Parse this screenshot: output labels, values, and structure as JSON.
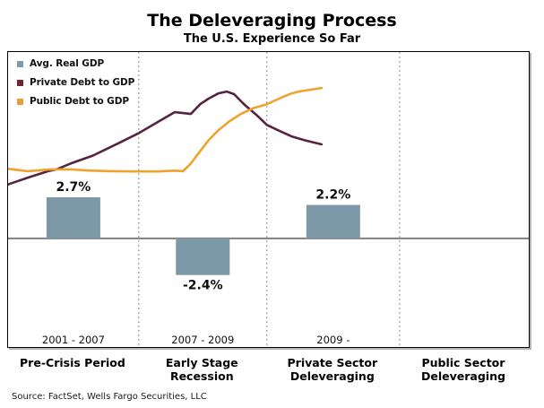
{
  "title": "The Deleveraging Process",
  "subtitle": "The U.S. Experience So Far",
  "source_note": "Source: FactSet, Wells Fargo Securities, LLC",
  "colors": {
    "bar_fill": "#7D98A6",
    "private_debt_line": "#572340",
    "public_debt_line": "#EFA32F",
    "section_divider": "#8a8a8a",
    "zero_axis": "#808080",
    "plot_border": "#000000"
  },
  "legend": {
    "position": "top-left-inside-plot",
    "items": [
      {
        "label": "Avg. Real GDP",
        "swatch_color": "#7D9BAA"
      },
      {
        "label": "Private Debt to GDP",
        "swatch_color": "#722730"
      },
      {
        "label": "Public Debt to GDP",
        "swatch_color": "#ED9C3C"
      }
    ]
  },
  "sections": [
    {
      "period": "2001 - 2007",
      "phase": "Pre-Crisis Period"
    },
    {
      "period": "2007 - 2009",
      "phase": "Early Stage\nRecession"
    },
    {
      "period": "2009 -",
      "phase": "Private Sector\nDeleveraging"
    },
    {
      "period": "",
      "phase": "Public Sector\nDeleveraging"
    }
  ],
  "chart_data": [
    {
      "type": "bar",
      "name": "Avg. Real GDP",
      "unit": "percent",
      "categories": [
        "2001 - 2007",
        "2007 - 2009",
        "2009 -",
        ""
      ],
      "phase_labels": [
        "Pre-Crisis Period",
        "Early Stage Recession",
        "Private Sector Deleveraging",
        "Public Sector Deleveraging"
      ],
      "values": [
        2.7,
        -2.4,
        2.2,
        null
      ],
      "value_labels": [
        "2.7%",
        "-2.4%",
        "2.2%",
        ""
      ],
      "section_boundaries_frac": [
        0,
        0.251,
        0.497,
        0.752,
        1
      ],
      "zero_line_frac_from_top": 0.632,
      "grid": "off",
      "note": "No numeric y-axis shown; bar heights labeled directly"
    },
    {
      "type": "line",
      "note": "No numeric axis shown; points are normalized plot coordinates [x-frac, y-frac from top]. Lines end about 60% across the plot (within the 2009- section).",
      "series": [
        {
          "name": "Private Debt to GDP",
          "color": "#572340",
          "points": [
            [
              0.0,
              0.449
            ],
            [
              0.036,
              0.427
            ],
            [
              0.077,
              0.404
            ],
            [
              0.093,
              0.398
            ],
            [
              0.12,
              0.378
            ],
            [
              0.163,
              0.351
            ],
            [
              0.21,
              0.311
            ],
            [
              0.249,
              0.277
            ],
            [
              0.287,
              0.238
            ],
            [
              0.32,
              0.204
            ],
            [
              0.336,
              0.207
            ],
            [
              0.351,
              0.21
            ],
            [
              0.369,
              0.177
            ],
            [
              0.385,
              0.158
            ],
            [
              0.404,
              0.14
            ],
            [
              0.42,
              0.134
            ],
            [
              0.434,
              0.143
            ],
            [
              0.453,
              0.177
            ],
            [
              0.477,
              0.213
            ],
            [
              0.497,
              0.247
            ],
            [
              0.522,
              0.268
            ],
            [
              0.546,
              0.287
            ],
            [
              0.572,
              0.3
            ],
            [
              0.602,
              0.313
            ]
          ]
        },
        {
          "name": "Public Debt to GDP",
          "color": "#EFA32F",
          "points": [
            [
              0.0,
              0.396
            ],
            [
              0.038,
              0.404
            ],
            [
              0.081,
              0.398
            ],
            [
              0.12,
              0.398
            ],
            [
              0.16,
              0.402
            ],
            [
              0.2,
              0.404
            ],
            [
              0.244,
              0.405
            ],
            [
              0.287,
              0.405
            ],
            [
              0.322,
              0.402
            ],
            [
              0.336,
              0.404
            ],
            [
              0.351,
              0.378
            ],
            [
              0.368,
              0.338
            ],
            [
              0.385,
              0.299
            ],
            [
              0.404,
              0.265
            ],
            [
              0.425,
              0.235
            ],
            [
              0.447,
              0.21
            ],
            [
              0.473,
              0.189
            ],
            [
              0.497,
              0.177
            ],
            [
              0.528,
              0.152
            ],
            [
              0.545,
              0.14
            ],
            [
              0.558,
              0.134
            ],
            [
              0.58,
              0.128
            ],
            [
              0.602,
              0.122
            ]
          ]
        }
      ]
    }
  ]
}
